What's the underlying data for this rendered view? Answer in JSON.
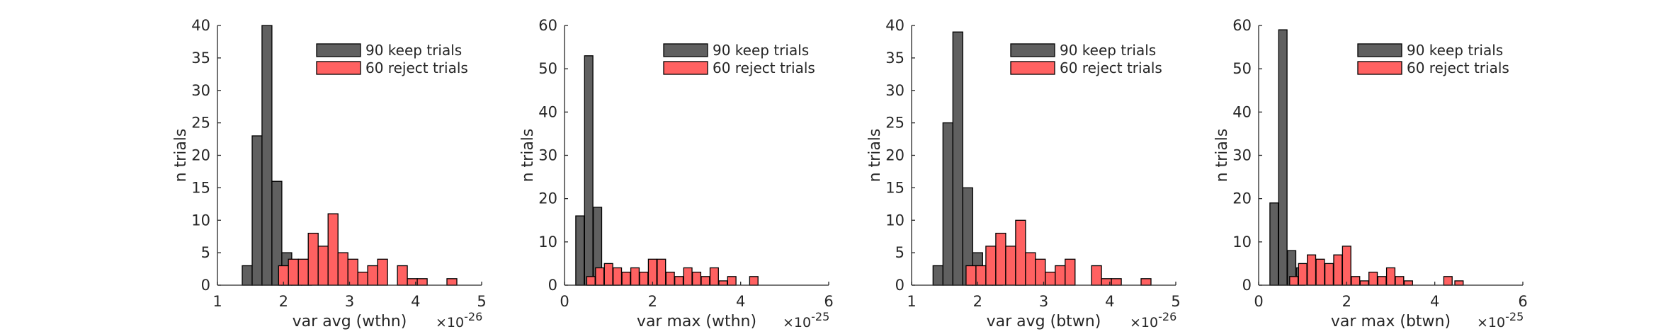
{
  "figure": {
    "colors": {
      "keep": "#606060",
      "reject": "#ff6161",
      "edge": "#000000",
      "axis": "#262626",
      "background": "#ffffff"
    }
  },
  "chart_data": [
    {
      "type": "bar",
      "xlabel": "var avg (wthn)",
      "ylabel": "n trials",
      "x_exponent_base": "×10",
      "x_exponent": "-26",
      "xlim": [
        1,
        5
      ],
      "ylim": [
        0,
        40
      ],
      "xticks": [
        "1",
        "2",
        "3",
        "4",
        "5"
      ],
      "yticks": [
        "0",
        "5",
        "10",
        "15",
        "20",
        "25",
        "30",
        "35",
        "40"
      ],
      "bin_width": 0.15,
      "legend_position": "top-right",
      "grid": false,
      "series": [
        {
          "name": "90 keep trials",
          "bars": [
            {
              "x": 1.45,
              "y": 3
            },
            {
              "x": 1.6,
              "y": 23
            },
            {
              "x": 1.75,
              "y": 40
            },
            {
              "x": 1.9,
              "y": 16
            },
            {
              "x": 2.05,
              "y": 5
            },
            {
              "x": 2.2,
              "y": 2
            },
            {
              "x": 2.35,
              "y": 1
            }
          ]
        },
        {
          "name": "60 reject trials",
          "bars": [
            {
              "x": 2.0,
              "y": 3
            },
            {
              "x": 2.15,
              "y": 4
            },
            {
              "x": 2.3,
              "y": 4
            },
            {
              "x": 2.45,
              "y": 8
            },
            {
              "x": 2.6,
              "y": 6
            },
            {
              "x": 2.75,
              "y": 11
            },
            {
              "x": 2.9,
              "y": 5
            },
            {
              "x": 3.05,
              "y": 4
            },
            {
              "x": 3.2,
              "y": 2
            },
            {
              "x": 3.35,
              "y": 3
            },
            {
              "x": 3.5,
              "y": 4
            },
            {
              "x": 3.8,
              "y": 3
            },
            {
              "x": 3.95,
              "y": 1
            },
            {
              "x": 4.1,
              "y": 1
            },
            {
              "x": 4.55,
              "y": 1
            }
          ]
        }
      ]
    },
    {
      "type": "bar",
      "xlabel": "var max (wthn)",
      "ylabel": "n trials",
      "x_exponent_base": "×10",
      "x_exponent": "-25",
      "xlim": [
        0,
        6
      ],
      "ylim": [
        0,
        60
      ],
      "xticks": [
        "0",
        "2",
        "4",
        "6"
      ],
      "yticks": [
        "0",
        "10",
        "20",
        "30",
        "40",
        "50",
        "60"
      ],
      "bin_width": 0.19,
      "legend_position": "top-right",
      "grid": false,
      "series": [
        {
          "name": "90 keep trials",
          "bars": [
            {
              "x": 0.35,
              "y": 16
            },
            {
              "x": 0.55,
              "y": 53
            },
            {
              "x": 0.75,
              "y": 18
            },
            {
              "x": 0.95,
              "y": 2
            },
            {
              "x": 1.15,
              "y": 1
            }
          ]
        },
        {
          "name": "60 reject trials",
          "bars": [
            {
              "x": 0.6,
              "y": 2
            },
            {
              "x": 0.8,
              "y": 4
            },
            {
              "x": 1.0,
              "y": 5
            },
            {
              "x": 1.2,
              "y": 4
            },
            {
              "x": 1.4,
              "y": 3
            },
            {
              "x": 1.6,
              "y": 4
            },
            {
              "x": 1.8,
              "y": 3
            },
            {
              "x": 2.0,
              "y": 6
            },
            {
              "x": 2.2,
              "y": 6
            },
            {
              "x": 2.4,
              "y": 3
            },
            {
              "x": 2.6,
              "y": 2
            },
            {
              "x": 2.8,
              "y": 4
            },
            {
              "x": 3.0,
              "y": 3
            },
            {
              "x": 3.2,
              "y": 2
            },
            {
              "x": 3.4,
              "y": 4
            },
            {
              "x": 3.6,
              "y": 1
            },
            {
              "x": 3.8,
              "y": 2
            },
            {
              "x": 4.3,
              "y": 2
            }
          ]
        }
      ]
    },
    {
      "type": "bar",
      "xlabel": "var avg (btwn)",
      "ylabel": "n trials",
      "x_exponent_base": "×10",
      "x_exponent": "-26",
      "xlim": [
        1,
        5
      ],
      "ylim": [
        0,
        40
      ],
      "xticks": [
        "1",
        "2",
        "3",
        "4",
        "5"
      ],
      "yticks": [
        "0",
        "5",
        "10",
        "15",
        "20",
        "25",
        "30",
        "35",
        "40"
      ],
      "bin_width": 0.15,
      "legend_position": "top-right",
      "grid": false,
      "series": [
        {
          "name": "90 keep trials",
          "bars": [
            {
              "x": 1.4,
              "y": 3
            },
            {
              "x": 1.55,
              "y": 25
            },
            {
              "x": 1.7,
              "y": 39
            },
            {
              "x": 1.85,
              "y": 15
            },
            {
              "x": 2.0,
              "y": 5
            },
            {
              "x": 2.15,
              "y": 1
            },
            {
              "x": 2.3,
              "y": 1
            }
          ]
        },
        {
          "name": "60 reject trials",
          "bars": [
            {
              "x": 1.9,
              "y": 3
            },
            {
              "x": 2.05,
              "y": 3
            },
            {
              "x": 2.2,
              "y": 6
            },
            {
              "x": 2.35,
              "y": 8
            },
            {
              "x": 2.5,
              "y": 6
            },
            {
              "x": 2.65,
              "y": 10
            },
            {
              "x": 2.8,
              "y": 5
            },
            {
              "x": 2.95,
              "y": 4
            },
            {
              "x": 3.1,
              "y": 2
            },
            {
              "x": 3.25,
              "y": 3
            },
            {
              "x": 3.4,
              "y": 4
            },
            {
              "x": 3.8,
              "y": 3
            },
            {
              "x": 3.95,
              "y": 1
            },
            {
              "x": 4.1,
              "y": 1
            },
            {
              "x": 4.55,
              "y": 1
            }
          ]
        }
      ]
    },
    {
      "type": "bar",
      "xlabel": "var max (btwn)",
      "ylabel": "n trials",
      "x_exponent_base": "×10",
      "x_exponent": "-25",
      "xlim": [
        0,
        6
      ],
      "ylim": [
        0,
        60
      ],
      "xticks": [
        "0",
        "2",
        "4",
        "6"
      ],
      "yticks": [
        "0",
        "10",
        "20",
        "30",
        "40",
        "50",
        "60"
      ],
      "bin_width": 0.19,
      "legend_position": "top-right",
      "grid": false,
      "series": [
        {
          "name": "90 keep trials",
          "bars": [
            {
              "x": 0.35,
              "y": 19
            },
            {
              "x": 0.55,
              "y": 59
            },
            {
              "x": 0.75,
              "y": 8
            },
            {
              "x": 0.95,
              "y": 4
            }
          ]
        },
        {
          "name": "60 reject trials",
          "bars": [
            {
              "x": 0.8,
              "y": 2
            },
            {
              "x": 1.0,
              "y": 5
            },
            {
              "x": 1.2,
              "y": 7
            },
            {
              "x": 1.4,
              "y": 6
            },
            {
              "x": 1.6,
              "y": 5
            },
            {
              "x": 1.8,
              "y": 7
            },
            {
              "x": 2.0,
              "y": 9
            },
            {
              "x": 2.2,
              "y": 2
            },
            {
              "x": 2.4,
              "y": 1
            },
            {
              "x": 2.6,
              "y": 3
            },
            {
              "x": 2.8,
              "y": 2
            },
            {
              "x": 3.0,
              "y": 4
            },
            {
              "x": 3.2,
              "y": 2
            },
            {
              "x": 3.4,
              "y": 1
            },
            {
              "x": 4.3,
              "y": 2
            },
            {
              "x": 4.55,
              "y": 1
            }
          ]
        }
      ]
    }
  ]
}
